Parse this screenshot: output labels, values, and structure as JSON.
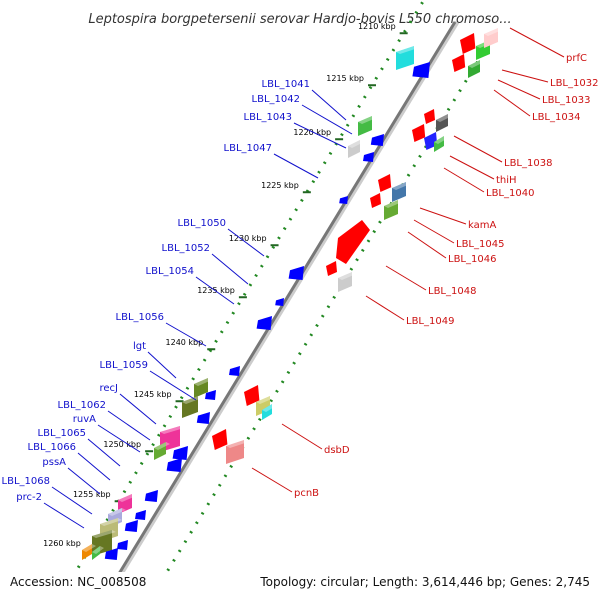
{
  "title": "Leptospira borgpetersenii serovar Hardjo-bovis L550 chromoso...",
  "footer": {
    "accession": "Accession: NC_008508",
    "topology": "Topology: circular; Length: 3,614,446 bp; Genes: 2,745"
  },
  "ticks": [
    "1210 kbp",
    "1215 kbp",
    "1220 kbp",
    "1225 kbp",
    "1230 kbp",
    "1235 kbp",
    "1240 kbp",
    "1245 kbp",
    "1250 kbp",
    "1255 kbp",
    "1260 kbp"
  ],
  "genes_minus": [
    "LBL_1041",
    "LBL_1042",
    "LBL_1043",
    "LBL_1047",
    "LBL_1050",
    "LBL_1052",
    "LBL_1054",
    "LBL_1056",
    "lgt",
    "LBL_1059",
    "recJ",
    "LBL_1062",
    "ruvA",
    "LBL_1065",
    "LBL_1066",
    "pssA",
    "LBL_1068",
    "prc-2"
  ],
  "genes_plus": [
    "prfC",
    "LBL_1032",
    "LBL_1033",
    "LBL_1034",
    "LBL_1038",
    "thiH",
    "LBL_1040",
    "kamA",
    "LBL_1045",
    "LBL_1046",
    "LBL_1048",
    "LBL_1049",
    "dsbD",
    "pcnB"
  ],
  "colors": {
    "minus_label": "#1111cc",
    "plus_label": "#cc1111",
    "minus_feature": "#0000ff",
    "plus_feature": "#ff0000",
    "dots": "#228822",
    "backbone": "#777777"
  }
}
